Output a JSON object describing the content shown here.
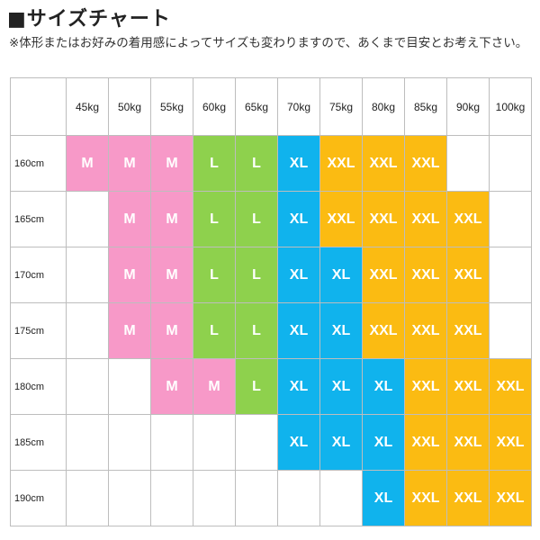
{
  "title": "■サイズチャート",
  "note": "※体形またはお好みの着用感によってサイズも変わりますので、あくまで目安とお考え下さい。",
  "colors": {
    "M": "#f799c8",
    "L": "#8ed14d",
    "XL": "#10b3ed",
    "XXL": "#fbbb12"
  },
  "table": {
    "weights": [
      "45kg",
      "50kg",
      "55kg",
      "60kg",
      "65kg",
      "70kg",
      "75kg",
      "80kg",
      "85kg",
      "90kg",
      "100kg"
    ],
    "rows": [
      {
        "height": "160cm",
        "sizes": [
          "M",
          "M",
          "M",
          "L",
          "L",
          "XL",
          "XXL",
          "XXL",
          "XXL",
          "",
          ""
        ]
      },
      {
        "height": "165cm",
        "sizes": [
          "",
          "M",
          "M",
          "L",
          "L",
          "XL",
          "XXL",
          "XXL",
          "XXL",
          "XXL",
          ""
        ]
      },
      {
        "height": "170cm",
        "sizes": [
          "",
          "M",
          "M",
          "L",
          "L",
          "XL",
          "XL",
          "XXL",
          "XXL",
          "XXL",
          ""
        ]
      },
      {
        "height": "175cm",
        "sizes": [
          "",
          "M",
          "M",
          "L",
          "L",
          "XL",
          "XL",
          "XXL",
          "XXL",
          "XXL",
          ""
        ]
      },
      {
        "height": "180cm",
        "sizes": [
          "",
          "",
          "M",
          "M",
          "L",
          "XL",
          "XL",
          "XL",
          "XXL",
          "XXL",
          "XXL"
        ]
      },
      {
        "height": "185cm",
        "sizes": [
          "",
          "",
          "",
          "",
          "",
          "XL",
          "XL",
          "XL",
          "XXL",
          "XXL",
          "XXL"
        ]
      },
      {
        "height": "190cm",
        "sizes": [
          "",
          "",
          "",
          "",
          "",
          "",
          "",
          "XL",
          "XXL",
          "XXL",
          "XXL"
        ]
      }
    ]
  }
}
